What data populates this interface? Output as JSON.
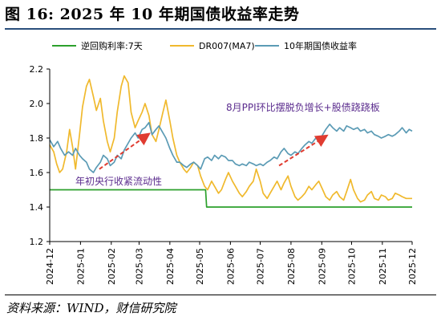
{
  "header": {
    "title": "图 16:  2025 年 10 年期国债收益率走势"
  },
  "footer": {
    "source": "资料来源：WIND，财信研究院"
  },
  "chart_data": {
    "type": "line",
    "ylim": [
      1.2,
      2.2
    ],
    "yticks": [
      1.2,
      1.4,
      1.6,
      1.8,
      2.0,
      2.2
    ],
    "x_range": [
      "2024-12-01",
      "2025-12-01"
    ],
    "x_ticks": [
      "2024-12",
      "2025-01",
      "2025-02",
      "2025-03",
      "2025-04",
      "2025-05",
      "2025-06",
      "2025-07",
      "2025-08",
      "2025-09",
      "2025-10",
      "2025-11",
      "2025-12"
    ],
    "legend_position": "top",
    "grid": false,
    "series": [
      {
        "name": "逆回购利率:7天",
        "color": "#2ca02c",
        "points": [
          [
            "2024-12-01",
            1.5
          ],
          [
            "2025-05-07",
            1.5
          ],
          [
            "2025-05-08",
            1.4
          ],
          [
            "2025-12-01",
            1.4
          ]
        ]
      },
      {
        "name": "DR007(MA7)",
        "color": "#f0b92d",
        "points": [
          [
            "2024-12-01",
            1.76
          ],
          [
            "2024-12-05",
            1.72
          ],
          [
            "2024-12-08",
            1.65
          ],
          [
            "2024-12-11",
            1.6
          ],
          [
            "2024-12-14",
            1.62
          ],
          [
            "2024-12-18",
            1.72
          ],
          [
            "2024-12-21",
            1.85
          ],
          [
            "2024-12-24",
            1.75
          ],
          [
            "2024-12-27",
            1.62
          ],
          [
            "2024-12-31",
            1.82
          ],
          [
            "2025-01-03",
            1.98
          ],
          [
            "2025-01-07",
            2.1
          ],
          [
            "2025-01-10",
            2.14
          ],
          [
            "2025-01-14",
            2.04
          ],
          [
            "2025-01-17",
            1.96
          ],
          [
            "2025-01-21",
            2.03
          ],
          [
            "2025-01-24",
            1.9
          ],
          [
            "2025-01-28",
            1.78
          ],
          [
            "2025-01-31",
            1.72
          ],
          [
            "2025-02-04",
            1.8
          ],
          [
            "2025-02-07",
            1.95
          ],
          [
            "2025-02-11",
            2.1
          ],
          [
            "2025-02-14",
            2.16
          ],
          [
            "2025-02-18",
            2.12
          ],
          [
            "2025-02-21",
            1.95
          ],
          [
            "2025-02-25",
            1.86
          ],
          [
            "2025-02-28",
            1.9
          ],
          [
            "2025-03-04",
            1.95
          ],
          [
            "2025-03-07",
            2.0
          ],
          [
            "2025-03-11",
            1.93
          ],
          [
            "2025-03-14",
            1.82
          ],
          [
            "2025-03-18",
            1.78
          ],
          [
            "2025-03-21",
            1.85
          ],
          [
            "2025-03-25",
            1.95
          ],
          [
            "2025-03-28",
            2.02
          ],
          [
            "2025-04-01",
            1.9
          ],
          [
            "2025-04-04",
            1.8
          ],
          [
            "2025-04-08",
            1.7
          ],
          [
            "2025-04-11",
            1.66
          ],
          [
            "2025-04-15",
            1.62
          ],
          [
            "2025-04-18",
            1.6
          ],
          [
            "2025-04-22",
            1.63
          ],
          [
            "2025-04-25",
            1.66
          ],
          [
            "2025-04-29",
            1.64
          ],
          [
            "2025-05-02",
            1.58
          ],
          [
            "2025-05-06",
            1.52
          ],
          [
            "2025-05-09",
            1.5
          ],
          [
            "2025-05-13",
            1.55
          ],
          [
            "2025-05-16",
            1.52
          ],
          [
            "2025-05-20",
            1.48
          ],
          [
            "2025-05-23",
            1.5
          ],
          [
            "2025-05-27",
            1.56
          ],
          [
            "2025-05-30",
            1.6
          ],
          [
            "2025-06-03",
            1.55
          ],
          [
            "2025-06-06",
            1.52
          ],
          [
            "2025-06-10",
            1.48
          ],
          [
            "2025-06-13",
            1.46
          ],
          [
            "2025-06-17",
            1.49
          ],
          [
            "2025-06-20",
            1.52
          ],
          [
            "2025-06-24",
            1.55
          ],
          [
            "2025-06-27",
            1.62
          ],
          [
            "2025-07-01",
            1.55
          ],
          [
            "2025-07-04",
            1.48
          ],
          [
            "2025-07-08",
            1.45
          ],
          [
            "2025-07-11",
            1.48
          ],
          [
            "2025-07-15",
            1.52
          ],
          [
            "2025-07-18",
            1.55
          ],
          [
            "2025-07-22",
            1.5
          ],
          [
            "2025-07-25",
            1.54
          ],
          [
            "2025-07-29",
            1.58
          ],
          [
            "2025-08-01",
            1.52
          ],
          [
            "2025-08-05",
            1.46
          ],
          [
            "2025-08-08",
            1.44
          ],
          [
            "2025-08-12",
            1.46
          ],
          [
            "2025-08-15",
            1.48
          ],
          [
            "2025-08-19",
            1.52
          ],
          [
            "2025-08-22",
            1.5
          ],
          [
            "2025-08-26",
            1.53
          ],
          [
            "2025-08-29",
            1.55
          ],
          [
            "2025-09-02",
            1.5
          ],
          [
            "2025-09-05",
            1.46
          ],
          [
            "2025-09-09",
            1.44
          ],
          [
            "2025-09-12",
            1.47
          ],
          [
            "2025-09-16",
            1.49
          ],
          [
            "2025-09-19",
            1.46
          ],
          [
            "2025-09-23",
            1.44
          ],
          [
            "2025-09-26",
            1.49
          ],
          [
            "2025-09-30",
            1.56
          ],
          [
            "2025-10-03",
            1.5
          ],
          [
            "2025-10-07",
            1.45
          ],
          [
            "2025-10-10",
            1.43
          ],
          [
            "2025-10-14",
            1.44
          ],
          [
            "2025-10-17",
            1.47
          ],
          [
            "2025-10-21",
            1.49
          ],
          [
            "2025-10-24",
            1.45
          ],
          [
            "2025-10-28",
            1.44
          ],
          [
            "2025-10-31",
            1.47
          ],
          [
            "2025-11-04",
            1.46
          ],
          [
            "2025-11-07",
            1.44
          ],
          [
            "2025-11-11",
            1.45
          ],
          [
            "2025-11-14",
            1.48
          ],
          [
            "2025-11-18",
            1.47
          ],
          [
            "2025-11-21",
            1.46
          ],
          [
            "2025-11-25",
            1.45
          ],
          [
            "2025-11-28",
            1.45
          ],
          [
            "2025-12-01",
            1.45
          ]
        ]
      },
      {
        "name": "10年期国债收益率",
        "color": "#5b9bb5",
        "points": [
          [
            "2024-12-01",
            1.79
          ],
          [
            "2024-12-05",
            1.75
          ],
          [
            "2024-12-09",
            1.78
          ],
          [
            "2024-12-12",
            1.74
          ],
          [
            "2024-12-16",
            1.7
          ],
          [
            "2024-12-20",
            1.72
          ],
          [
            "2024-12-24",
            1.7
          ],
          [
            "2024-12-27",
            1.74
          ],
          [
            "2024-12-31",
            1.7
          ],
          [
            "2025-01-03",
            1.68
          ],
          [
            "2025-01-07",
            1.66
          ],
          [
            "2025-01-10",
            1.62
          ],
          [
            "2025-01-14",
            1.6
          ],
          [
            "2025-01-17",
            1.63
          ],
          [
            "2025-01-21",
            1.66
          ],
          [
            "2025-01-24",
            1.7
          ],
          [
            "2025-01-28",
            1.68
          ],
          [
            "2025-01-31",
            1.64
          ],
          [
            "2025-02-04",
            1.66
          ],
          [
            "2025-02-07",
            1.7
          ],
          [
            "2025-02-11",
            1.68
          ],
          [
            "2025-02-14",
            1.73
          ],
          [
            "2025-02-18",
            1.77
          ],
          [
            "2025-02-21",
            1.8
          ],
          [
            "2025-02-25",
            1.83
          ],
          [
            "2025-02-28",
            1.8
          ],
          [
            "2025-03-04",
            1.85
          ],
          [
            "2025-03-07",
            1.86
          ],
          [
            "2025-03-11",
            1.89
          ],
          [
            "2025-03-14",
            1.82
          ],
          [
            "2025-03-18",
            1.85
          ],
          [
            "2025-03-21",
            1.87
          ],
          [
            "2025-03-25",
            1.83
          ],
          [
            "2025-03-28",
            1.8
          ],
          [
            "2025-04-01",
            1.74
          ],
          [
            "2025-04-04",
            1.7
          ],
          [
            "2025-04-08",
            1.66
          ],
          [
            "2025-04-11",
            1.66
          ],
          [
            "2025-04-15",
            1.64
          ],
          [
            "2025-04-18",
            1.63
          ],
          [
            "2025-04-22",
            1.65
          ],
          [
            "2025-04-25",
            1.66
          ],
          [
            "2025-04-29",
            1.64
          ],
          [
            "2025-05-02",
            1.62
          ],
          [
            "2025-05-06",
            1.68
          ],
          [
            "2025-05-09",
            1.69
          ],
          [
            "2025-05-13",
            1.67
          ],
          [
            "2025-05-16",
            1.7
          ],
          [
            "2025-05-20",
            1.68
          ],
          [
            "2025-05-23",
            1.7
          ],
          [
            "2025-05-27",
            1.69
          ],
          [
            "2025-05-30",
            1.67
          ],
          [
            "2025-06-03",
            1.67
          ],
          [
            "2025-06-06",
            1.65
          ],
          [
            "2025-06-10",
            1.64
          ],
          [
            "2025-06-13",
            1.65
          ],
          [
            "2025-06-17",
            1.64
          ],
          [
            "2025-06-20",
            1.66
          ],
          [
            "2025-06-24",
            1.65
          ],
          [
            "2025-06-27",
            1.64
          ],
          [
            "2025-07-01",
            1.65
          ],
          [
            "2025-07-04",
            1.64
          ],
          [
            "2025-07-08",
            1.66
          ],
          [
            "2025-07-11",
            1.67
          ],
          [
            "2025-07-15",
            1.69
          ],
          [
            "2025-07-18",
            1.68
          ],
          [
            "2025-07-22",
            1.72
          ],
          [
            "2025-07-25",
            1.74
          ],
          [
            "2025-07-29",
            1.71
          ],
          [
            "2025-08-01",
            1.7
          ],
          [
            "2025-08-05",
            1.72
          ],
          [
            "2025-08-08",
            1.71
          ],
          [
            "2025-08-12",
            1.74
          ],
          [
            "2025-08-15",
            1.76
          ],
          [
            "2025-08-19",
            1.78
          ],
          [
            "2025-08-22",
            1.77
          ],
          [
            "2025-08-26",
            1.8
          ],
          [
            "2025-08-29",
            1.78
          ],
          [
            "2025-09-02",
            1.82
          ],
          [
            "2025-09-05",
            1.85
          ],
          [
            "2025-09-09",
            1.88
          ],
          [
            "2025-09-12",
            1.86
          ],
          [
            "2025-09-16",
            1.84
          ],
          [
            "2025-09-19",
            1.86
          ],
          [
            "2025-09-23",
            1.84
          ],
          [
            "2025-09-26",
            1.87
          ],
          [
            "2025-09-30",
            1.86
          ],
          [
            "2025-10-03",
            1.85
          ],
          [
            "2025-10-07",
            1.86
          ],
          [
            "2025-10-10",
            1.84
          ],
          [
            "2025-10-14",
            1.85
          ],
          [
            "2025-10-17",
            1.83
          ],
          [
            "2025-10-21",
            1.84
          ],
          [
            "2025-10-24",
            1.82
          ],
          [
            "2025-10-28",
            1.81
          ],
          [
            "2025-10-31",
            1.8
          ],
          [
            "2025-11-04",
            1.81
          ],
          [
            "2025-11-07",
            1.82
          ],
          [
            "2025-11-11",
            1.81
          ],
          [
            "2025-11-14",
            1.82
          ],
          [
            "2025-11-18",
            1.84
          ],
          [
            "2025-11-21",
            1.86
          ],
          [
            "2025-11-25",
            1.83
          ],
          [
            "2025-11-28",
            1.85
          ],
          [
            "2025-12-01",
            1.84
          ]
        ]
      }
    ],
    "annotations": [
      {
        "text": "年初央行收紧流动性",
        "arrow_from": [
          "2025-01-20",
          1.62
        ],
        "arrow_to": [
          "2025-03-10",
          1.82
        ]
      },
      {
        "text": "8月PPI环比摆脱负增长+股债跷跷板",
        "arrow_from": [
          "2025-07-20",
          1.64
        ],
        "arrow_to": [
          "2025-09-05",
          1.81
        ]
      }
    ]
  }
}
